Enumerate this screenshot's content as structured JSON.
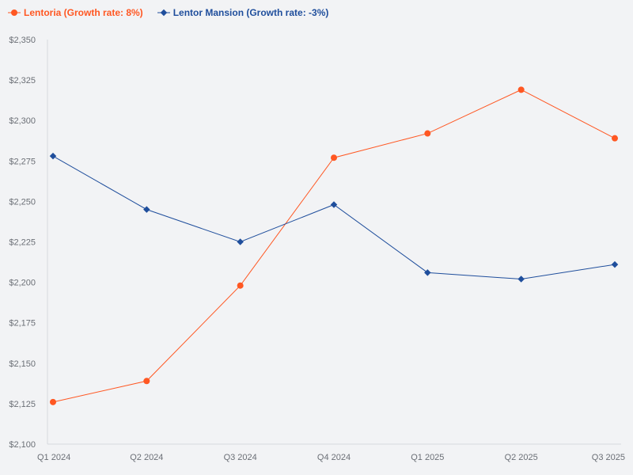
{
  "chart_data": {
    "type": "line",
    "categories": [
      "Q1 2024",
      "Q2 2024",
      "Q3 2024",
      "Q4 2024",
      "Q1 2025",
      "Q2 2025",
      "Q3 2025"
    ],
    "series": [
      {
        "name": "Lentoria (Growth rate: 8%)",
        "color": "#ff5722",
        "marker": "circle",
        "values": [
          2126,
          2139,
          2198,
          2277,
          2292,
          2319,
          2289
        ]
      },
      {
        "name": "Lentor Mansion (Growth rate: -3%)",
        "color": "#1f4e9c",
        "marker": "diamond",
        "values": [
          2278,
          2245,
          2225,
          2248,
          2206,
          2202,
          2211
        ]
      }
    ],
    "ylim": [
      2100,
      2350
    ],
    "yticks": [
      "$2,100",
      "$2,125",
      "$2,150",
      "$2,175",
      "$2,200",
      "$2,225",
      "$2,250",
      "$2,275",
      "$2,300",
      "$2,325",
      "$2,350"
    ],
    "title": "",
    "xlabel": "",
    "ylabel": "",
    "grid": false,
    "legend_position": "top-left"
  }
}
